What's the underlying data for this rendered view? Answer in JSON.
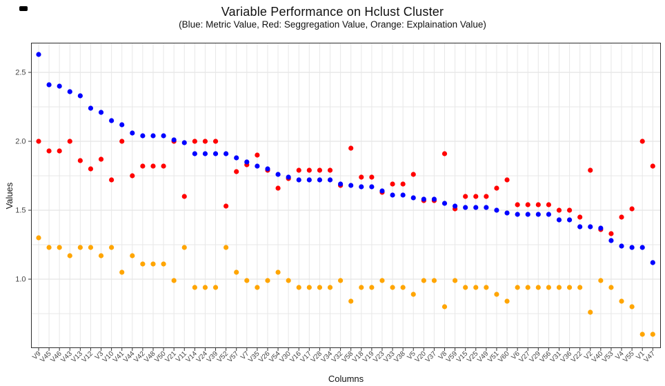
{
  "title": "Variable Performance on Hclust Cluster",
  "subtitle": "(Blue: Metric Value, Red: Seggregation Value, Orange: Explaination Value)",
  "chart_data": {
    "type": "scatter",
    "title": "Variable Performance on Hclust Cluster",
    "subtitle": "(Blue: Metric Value, Red: Seggregation Value, Orange: Explaination Value)",
    "xlabel": "Columns",
    "ylabel": "Values",
    "ylim": [
      0.5,
      2.72
    ],
    "yticks": [
      1.0,
      1.5,
      2.0,
      2.5
    ],
    "ytick_labels": [
      "1.0",
      "1.5",
      "2.0",
      "2.5"
    ],
    "grid": "vertical line per category; horizontal lines every 0.25",
    "legend_position": "none (series colors described in subtitle)",
    "categories": [
      "V9",
      "V45",
      "V46",
      "V43",
      "V13",
      "V12",
      "V3",
      "V10",
      "V41",
      "V44",
      "V42",
      "V48",
      "V50",
      "V21",
      "V11",
      "V14",
      "V24",
      "V39",
      "V52",
      "V57",
      "V7",
      "V35",
      "V26",
      "V54",
      "V30",
      "V16",
      "V17",
      "V28",
      "V34",
      "V32",
      "V58",
      "V18",
      "V19",
      "V23",
      "V33",
      "V38",
      "V5",
      "V20",
      "V37",
      "V8",
      "V59",
      "V15",
      "V25",
      "V49",
      "V51",
      "V60",
      "V6",
      "V27",
      "V29",
      "V56",
      "V31",
      "V36",
      "V22",
      "V2",
      "V40",
      "V53",
      "V4",
      "V55",
      "V1",
      "V47"
    ],
    "series": [
      {
        "name": "Metric Value",
        "color": "#0000FF",
        "values": [
          2.63,
          2.41,
          2.4,
          2.36,
          2.33,
          2.24,
          2.21,
          2.15,
          2.12,
          2.06,
          2.04,
          2.04,
          2.04,
          2.01,
          1.99,
          1.91,
          1.91,
          1.91,
          1.91,
          1.88,
          1.85,
          1.82,
          1.8,
          1.76,
          1.74,
          1.72,
          1.72,
          1.72,
          1.72,
          1.69,
          1.68,
          1.67,
          1.67,
          1.64,
          1.61,
          1.61,
          1.59,
          1.58,
          1.58,
          1.55,
          1.53,
          1.52,
          1.52,
          1.52,
          1.5,
          1.48,
          1.47,
          1.47,
          1.47,
          1.47,
          1.43,
          1.43,
          1.38,
          1.38,
          1.37,
          1.28,
          1.24,
          1.23,
          1.23,
          1.12
        ]
      },
      {
        "name": "Seggregation Value",
        "color": "#FF0000",
        "values": [
          2.0,
          1.93,
          1.93,
          2.0,
          1.86,
          1.8,
          1.87,
          1.72,
          2.0,
          1.75,
          1.82,
          1.82,
          1.82,
          2.0,
          1.6,
          2.0,
          2.0,
          2.0,
          1.53,
          1.78,
          1.83,
          1.9,
          1.79,
          1.66,
          1.73,
          1.79,
          1.79,
          1.79,
          1.79,
          1.68,
          1.95,
          1.74,
          1.74,
          1.63,
          1.69,
          1.69,
          1.76,
          1.57,
          1.57,
          1.91,
          1.51,
          1.6,
          1.6,
          1.6,
          1.66,
          1.72,
          1.54,
          1.54,
          1.54,
          1.54,
          1.5,
          1.5,
          1.45,
          1.79,
          1.36,
          1.33,
          1.45,
          1.51,
          2.0,
          1.82
        ]
      },
      {
        "name": "Explaination Value",
        "color": "#FFA500",
        "values": [
          1.3,
          1.23,
          1.23,
          1.17,
          1.23,
          1.23,
          1.17,
          1.23,
          1.05,
          1.17,
          1.11,
          1.11,
          1.11,
          0.99,
          1.23,
          0.94,
          0.94,
          0.94,
          1.23,
          1.05,
          0.99,
          0.94,
          0.99,
          1.05,
          0.99,
          0.94,
          0.94,
          0.94,
          0.94,
          0.99,
          0.84,
          0.94,
          0.94,
          0.99,
          0.94,
          0.94,
          0.89,
          0.99,
          0.99,
          0.8,
          0.99,
          0.94,
          0.94,
          0.94,
          0.89,
          0.84,
          0.94,
          0.94,
          0.94,
          0.94,
          0.94,
          0.94,
          0.94,
          0.76,
          0.99,
          0.94,
          0.84,
          0.8,
          0.6,
          0.6
        ]
      }
    ]
  },
  "colors": {
    "blue": "#0000FF",
    "red": "#FF0000",
    "orange": "#FFA500",
    "grid_major": "#DCDCDC",
    "grid_minor": "#E7E7E7",
    "panel_border": "#2B2B2B",
    "tick": "#333333",
    "tick_label": "#444444"
  }
}
